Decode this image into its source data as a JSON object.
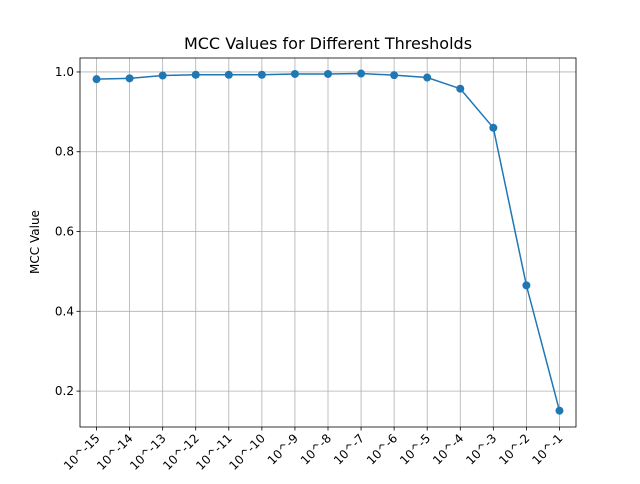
{
  "chart_data": {
    "type": "line",
    "title": "MCC Values for Different Thresholds",
    "xlabel": "",
    "ylabel": "MCC Value",
    "categories": [
      "10^-15",
      "10^-14",
      "10^-13",
      "10^-12",
      "10^-11",
      "10^-10",
      "10^-9",
      "10^-8",
      "10^-7",
      "10^-6",
      "10^-5",
      "10^-4",
      "10^-3",
      "10^-2",
      "10^-1"
    ],
    "series": [
      {
        "values": [
          0.982,
          0.984,
          0.991,
          0.993,
          0.993,
          0.993,
          0.995,
          0.995,
          0.996,
          0.992,
          0.986,
          0.958,
          0.86,
          0.465,
          0.151
        ]
      }
    ],
    "y_ticks": [
      0.2,
      0.4,
      0.6,
      0.8,
      1.0
    ],
    "y_tick_labels": [
      "0.2",
      "0.4",
      "0.6",
      "0.8",
      "1.0"
    ],
    "ylim": [
      0.11,
      1.035
    ],
    "grid": true,
    "legend": "none",
    "colors": {
      "line": "#1f77b4",
      "grid": "#b0b0b0",
      "axis": "#000000"
    }
  }
}
